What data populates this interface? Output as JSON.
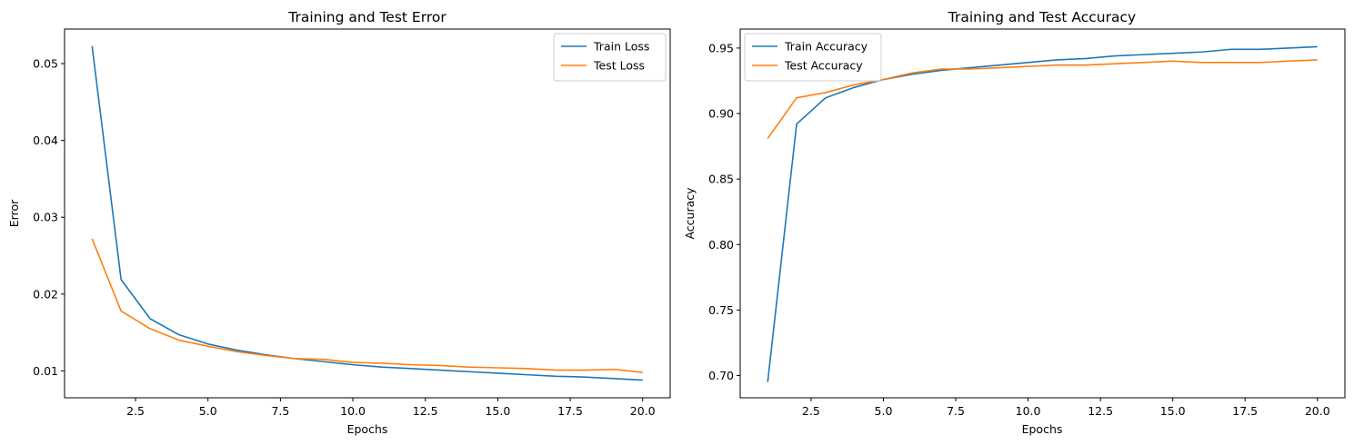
{
  "chart_data": [
    {
      "type": "line",
      "title": "Training and Test Error",
      "xlabel": "Epochs",
      "ylabel": "Error",
      "xlim": [
        0.05,
        20.95
      ],
      "ylim": [
        0.0065,
        0.0545
      ],
      "xticks": [
        2.5,
        5.0,
        7.5,
        10.0,
        12.5,
        15.0,
        17.5,
        20.0
      ],
      "xtick_labels": [
        "2.5",
        "5.0",
        "7.5",
        "10.0",
        "12.5",
        "15.0",
        "17.5",
        "20.0"
      ],
      "yticks": [
        0.01,
        0.02,
        0.03,
        0.04,
        0.05
      ],
      "ytick_labels": [
        "0.01",
        "0.02",
        "0.03",
        "0.04",
        "0.05"
      ],
      "legend_position": "top-right",
      "grid": false,
      "x": [
        1,
        2,
        3,
        4,
        5,
        6,
        7,
        8,
        9,
        10,
        11,
        12,
        13,
        14,
        15,
        16,
        17,
        18,
        19,
        20
      ],
      "series": [
        {
          "name": "Train Loss",
          "color": "#1f77b4",
          "values": [
            0.0523,
            0.0219,
            0.0168,
            0.0147,
            0.0135,
            0.0127,
            0.0121,
            0.0116,
            0.0112,
            0.0108,
            0.0105,
            0.0103,
            0.0101,
            0.0099,
            0.0097,
            0.0095,
            0.0093,
            0.0092,
            0.009,
            0.0088
          ]
        },
        {
          "name": "Test Loss",
          "color": "#ff7f0e",
          "values": [
            0.0272,
            0.0178,
            0.0155,
            0.014,
            0.0132,
            0.0125,
            0.012,
            0.0116,
            0.0115,
            0.0111,
            0.011,
            0.0108,
            0.0107,
            0.0105,
            0.0104,
            0.0103,
            0.0101,
            0.0101,
            0.0102,
            0.0098
          ]
        }
      ]
    },
    {
      "type": "line",
      "title": "Training and Test Accuracy",
      "xlabel": "Epochs",
      "ylabel": "Accuracy",
      "xlim": [
        0.05,
        20.95
      ],
      "ylim": [
        0.683,
        0.9645
      ],
      "xticks": [
        2.5,
        5.0,
        7.5,
        10.0,
        12.5,
        15.0,
        17.5,
        20.0
      ],
      "xtick_labels": [
        "2.5",
        "5.0",
        "7.5",
        "10.0",
        "12.5",
        "15.0",
        "17.5",
        "20.0"
      ],
      "yticks": [
        0.7,
        0.75,
        0.8,
        0.85,
        0.9,
        0.95
      ],
      "ytick_labels": [
        "0.70",
        "0.75",
        "0.80",
        "0.85",
        "0.90",
        "0.95"
      ],
      "legend_position": "top-left",
      "grid": false,
      "x": [
        1,
        2,
        3,
        4,
        5,
        6,
        7,
        8,
        9,
        10,
        11,
        12,
        13,
        14,
        15,
        16,
        17,
        18,
        19,
        20
      ],
      "series": [
        {
          "name": "Train Accuracy",
          "color": "#1f77b4",
          "values": [
            0.695,
            0.892,
            0.912,
            0.92,
            0.926,
            0.93,
            0.933,
            0.935,
            0.937,
            0.939,
            0.941,
            0.942,
            0.944,
            0.945,
            0.946,
            0.947,
            0.949,
            0.949,
            0.95,
            0.951
          ]
        },
        {
          "name": "Test Accuracy",
          "color": "#ff7f0e",
          "values": [
            0.881,
            0.912,
            0.916,
            0.922,
            0.926,
            0.931,
            0.934,
            0.934,
            0.935,
            0.936,
            0.937,
            0.937,
            0.938,
            0.939,
            0.94,
            0.939,
            0.939,
            0.939,
            0.94,
            0.941
          ]
        }
      ]
    }
  ]
}
